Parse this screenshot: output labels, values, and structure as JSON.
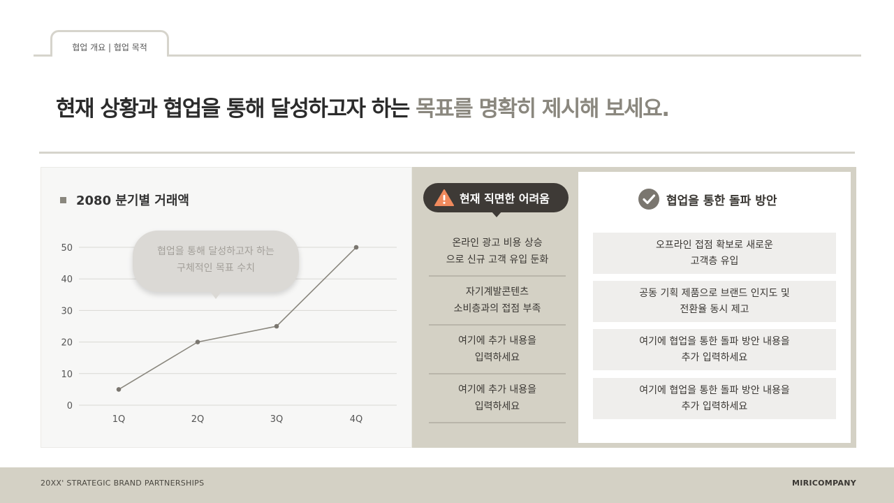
{
  "tab": {
    "label": "협업 개요 | 협업 목적"
  },
  "headline": {
    "main": "현재 상황과 협업을 통해 달성하고자 하는 ",
    "accent": "목표를 명확히 제시해 보세요."
  },
  "chart_panel": {
    "title": "2080 분기별 거래액",
    "bubble_line1": "협업을 통해 달성하고자 하는",
    "bubble_line2": "구체적인 목표 수치"
  },
  "chart_data": {
    "type": "line",
    "categories": [
      "1Q",
      "2Q",
      "3Q",
      "4Q"
    ],
    "values": [
      5,
      20,
      25,
      50
    ],
    "ylim": [
      0,
      50
    ],
    "yticks": [
      0,
      10,
      20,
      30,
      40,
      50
    ],
    "grid": true,
    "title": "2080 분기별 거래액",
    "xlabel": "",
    "ylabel": ""
  },
  "problems": {
    "title": "현재 직면한 어려움",
    "items": [
      "온라인 광고 비용 상승\n으로 신규 고객 유입 둔화",
      "자기계발콘텐츠\n소비층과의 접점 부족",
      "여기에 추가 내용을\n입력하세요",
      "여기에 추가 내용을\n입력하세요"
    ]
  },
  "solutions": {
    "title": "협업을 통한 돌파 방안",
    "items": [
      "오프라인 접점 확보로 새로운\n고객층 유입",
      "공동 기획 제품으로 브랜드 인지도 및\n전환율 동시 제고",
      "여기에 협업을 통한 돌파 방안 내용을\n추가 입력하세요",
      "여기에 협업을 통한 돌파 방안 내용을\n추가 입력하세요"
    ]
  },
  "footer": {
    "left": "20XX' STRATEGIC BRAND PARTNERSHIPS",
    "right": "MIRICOMPANY"
  },
  "colors": {
    "accent": "#8a877e",
    "panel": "#d4d1c5",
    "dark_pill": "#3e3a36",
    "warning": "#f08a5d"
  },
  "icons": {
    "problem": "warning-icon",
    "solution": "check-circle-icon"
  }
}
